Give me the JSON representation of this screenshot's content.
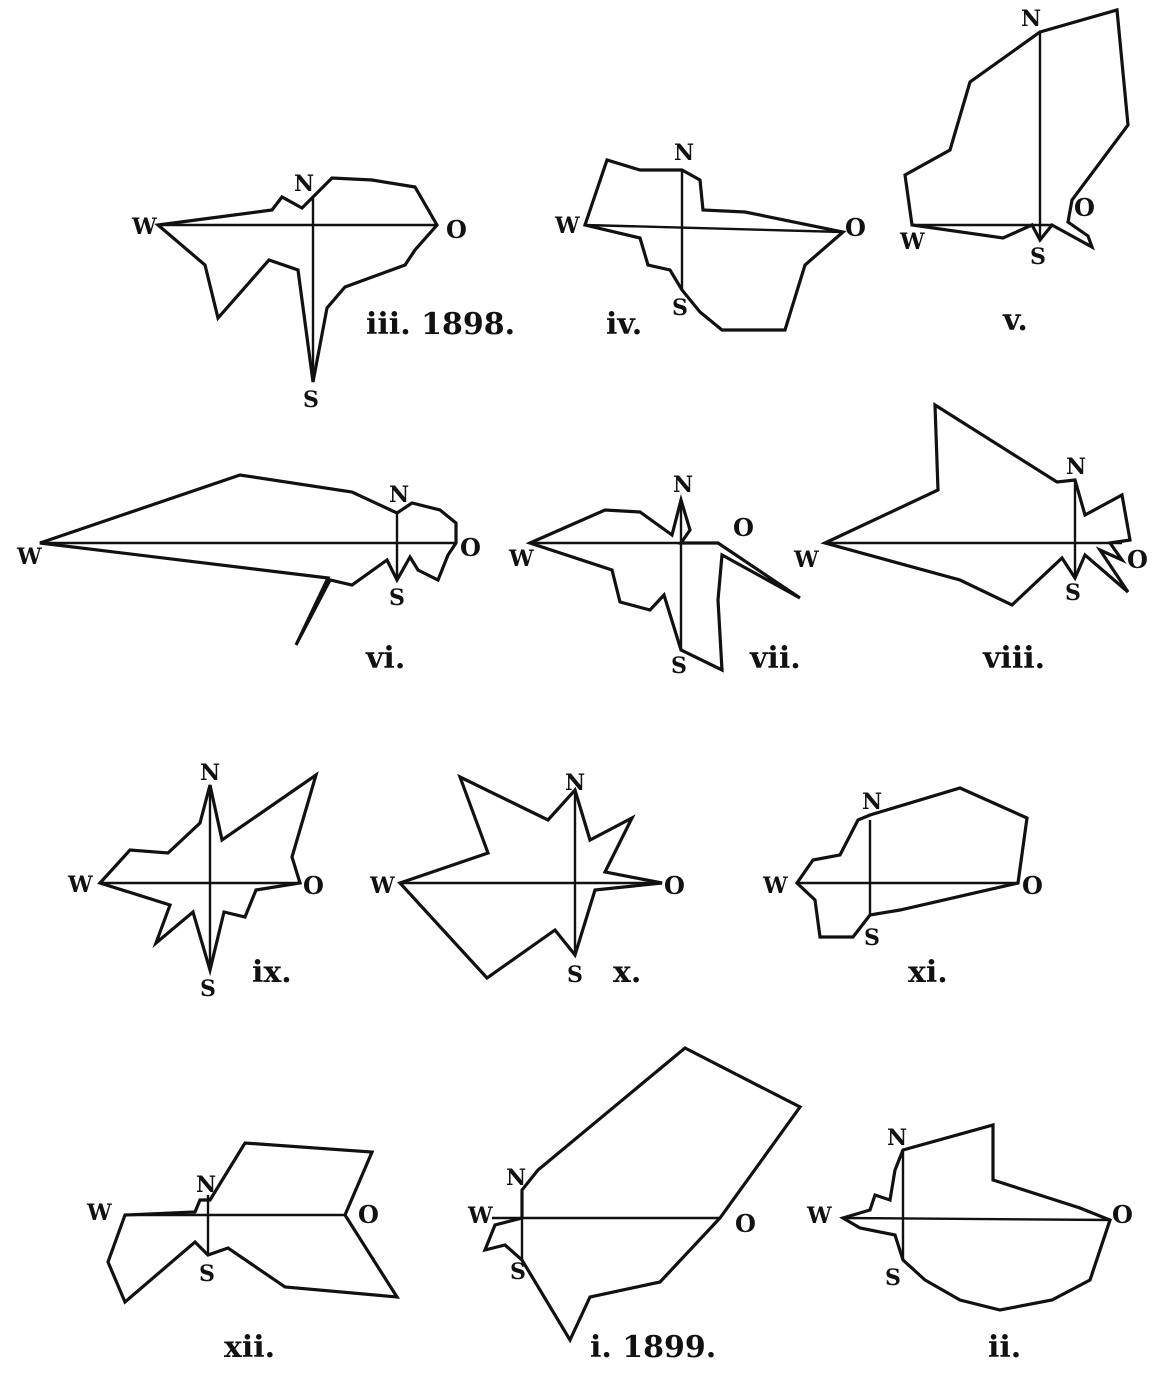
{
  "diagrams": [
    {
      "id": "iii",
      "caption": "iii. 1898.",
      "labels": {
        "N": "N",
        "S": "S",
        "W": "W",
        "O": "O"
      }
    },
    {
      "id": "iv",
      "caption": "iv.",
      "labels": {
        "N": "N",
        "S": "S",
        "W": "W",
        "O": "O"
      }
    },
    {
      "id": "v",
      "caption": "v.",
      "labels": {
        "N": "N",
        "S": "S",
        "W": "W",
        "O": "O"
      }
    },
    {
      "id": "vi",
      "caption": "vi.",
      "labels": {
        "N": "N",
        "S": "S",
        "W": "W",
        "O": "O"
      }
    },
    {
      "id": "vii",
      "caption": "vii.",
      "labels": {
        "N": "N",
        "S": "S",
        "W": "W",
        "O": "O"
      }
    },
    {
      "id": "viii",
      "caption": "viii.",
      "labels": {
        "N": "N",
        "S": "S",
        "W": "W",
        "O": "O"
      }
    },
    {
      "id": "ix",
      "caption": "ix.",
      "labels": {
        "N": "N",
        "S": "S",
        "W": "W",
        "O": "O"
      }
    },
    {
      "id": "x",
      "caption": "x.",
      "labels": {
        "N": "N",
        "S": "S",
        "W": "W",
        "O": "O"
      }
    },
    {
      "id": "xi",
      "caption": "xi.",
      "labels": {
        "N": "N",
        "S": "S",
        "W": "W",
        "O": "O"
      }
    },
    {
      "id": "xii",
      "caption": "xii.",
      "labels": {
        "N": "N",
        "S": "S",
        "W": "W",
        "O": "O"
      }
    },
    {
      "id": "i",
      "caption": "i. 1899.",
      "labels": {
        "N": "N",
        "S": "S",
        "W": "W",
        "O": "O"
      }
    },
    {
      "id": "ii",
      "caption": "ii.",
      "labels": {
        "N": "N",
        "S": "S",
        "W": "W",
        "O": "O"
      }
    }
  ]
}
